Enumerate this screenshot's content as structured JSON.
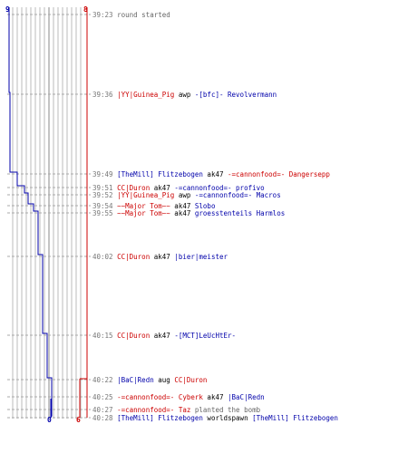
{
  "colors": {
    "red_team": "#cc0000",
    "blue_team": "#0000aa",
    "time": "#777777",
    "grid": "#bbbbbb"
  },
  "counters": {
    "blue_start": "9",
    "red_start": "8",
    "blue_end": "0",
    "red_end": "6"
  },
  "events": [
    {
      "time": "39:23",
      "parts": [
        {
          "text": "round started",
          "cls": "grey"
        }
      ]
    },
    {
      "time": "39:36",
      "parts": [
        {
          "text": "|YY|Guinea_Pig",
          "cls": "team-red"
        },
        {
          "text": " awp ",
          "cls": "info"
        },
        {
          "text": "-[bfc]- Revolvermann",
          "cls": "team-blue"
        }
      ]
    },
    {
      "time": "39:49",
      "parts": [
        {
          "text": "[TheMill] Flitzebogen",
          "cls": "team-blue"
        },
        {
          "text": " ak47 ",
          "cls": "info"
        },
        {
          "text": "-=cannonfood=- Dangersepp",
          "cls": "team-red"
        }
      ]
    },
    {
      "time": "39:51",
      "parts": [
        {
          "text": "CC|Duron",
          "cls": "team-red"
        },
        {
          "text": " ak47 ",
          "cls": "info"
        },
        {
          "text": "-=cannonfood=- profivo",
          "cls": "team-blue"
        }
      ]
    },
    {
      "time": "39:52",
      "parts": [
        {
          "text": "|YY|Guinea_Pig",
          "cls": "team-red"
        },
        {
          "text": " awp ",
          "cls": "info"
        },
        {
          "text": "-=cannonfood=- Macros",
          "cls": "team-blue"
        }
      ]
    },
    {
      "time": "39:54",
      "parts": [
        {
          "text": "~~Major Tom~~",
          "cls": "team-red"
        },
        {
          "text": " ak47 ",
          "cls": "info"
        },
        {
          "text": "Slobo",
          "cls": "team-blue"
        }
      ]
    },
    {
      "time": "39:55",
      "parts": [
        {
          "text": "~~Major Tom~~",
          "cls": "team-red"
        },
        {
          "text": " ak47 ",
          "cls": "info"
        },
        {
          "text": "groesstenteils Harmlos",
          "cls": "team-blue"
        }
      ]
    },
    {
      "time": "40:02",
      "parts": [
        {
          "text": "CC|Duron",
          "cls": "team-red"
        },
        {
          "text": " ak47 ",
          "cls": "info"
        },
        {
          "text": "|bier|meister",
          "cls": "team-blue"
        }
      ]
    },
    {
      "time": "40:15",
      "parts": [
        {
          "text": "CC|Duron",
          "cls": "team-red"
        },
        {
          "text": " ak47 ",
          "cls": "info"
        },
        {
          "text": "-[MCT]LeUcHtEr-",
          "cls": "team-blue"
        }
      ]
    },
    {
      "time": "40:22",
      "parts": [
        {
          "text": "|BaC|Redn",
          "cls": "team-blue"
        },
        {
          "text": " aug ",
          "cls": "info"
        },
        {
          "text": "CC|Duron",
          "cls": "team-red"
        }
      ]
    },
    {
      "time": "40:25",
      "parts": [
        {
          "text": "-=cannonfood=- Cyberk",
          "cls": "team-red"
        },
        {
          "text": "  ak47 ",
          "cls": "info"
        },
        {
          "text": "|BaC|Redn",
          "cls": "team-blue"
        }
      ]
    },
    {
      "time": "40:27",
      "parts": [
        {
          "text": "-=cannonfood=- Taz",
          "cls": "team-red"
        },
        {
          "text": " planted the bomb",
          "cls": "grey"
        }
      ]
    },
    {
      "time": "40:28",
      "parts": [
        {
          "text": "[TheMill] Flitzebogen",
          "cls": "team-blue"
        },
        {
          "text": " worldspawn ",
          "cls": "info"
        },
        {
          "text": "[TheMill] Flitzebogen",
          "cls": "team-blue"
        }
      ]
    }
  ]
}
